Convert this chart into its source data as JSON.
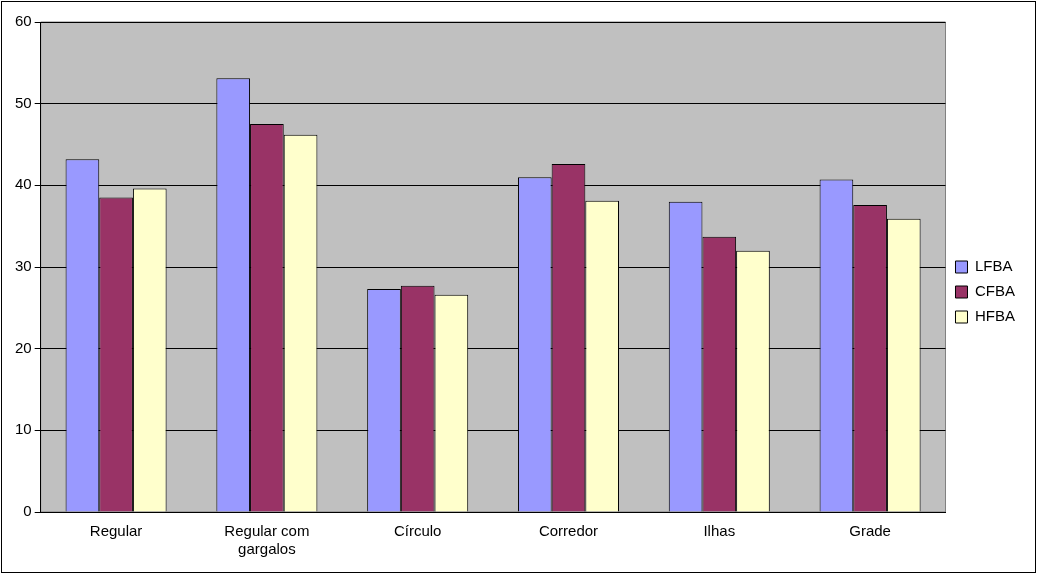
{
  "chart_data": {
    "type": "bar",
    "categories": [
      "Regular",
      "Regular com gargalos",
      "Círculo",
      "Corredor",
      "Ilhas",
      "Grade"
    ],
    "series": [
      {
        "name": "LFBA",
        "color": "#9999ff",
        "values": [
          43.2,
          53.1,
          27.3,
          41.0,
          38.0,
          40.7
        ]
      },
      {
        "name": "CFBA",
        "color": "#993366",
        "values": [
          38.5,
          47.5,
          27.7,
          42.6,
          33.7,
          37.6
        ]
      },
      {
        "name": "HFBA",
        "color": "#ffffcc",
        "values": [
          39.6,
          46.2,
          26.6,
          38.1,
          32.0,
          35.9
        ]
      }
    ],
    "ylim": [
      0,
      60
    ],
    "yticks": [
      0,
      10,
      20,
      30,
      40,
      50,
      60
    ],
    "grid": "y",
    "legend": "right"
  }
}
